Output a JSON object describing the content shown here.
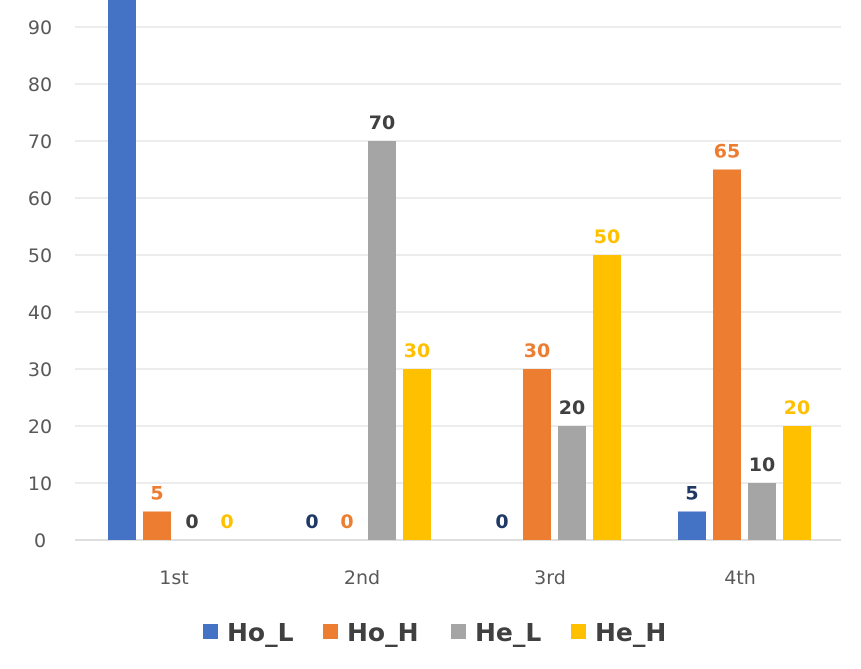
{
  "chart_data": {
    "type": "bar",
    "title": "",
    "xlabel": "",
    "ylabel": "",
    "categories": [
      "1st",
      "2nd",
      "3rd",
      "4th"
    ],
    "ylim": [
      0,
      95
    ],
    "yticks": [
      "0",
      "10",
      "20",
      "30",
      "40",
      "50",
      "60",
      "70",
      "80",
      "90"
    ],
    "grid": true,
    "legend_position": "bottom",
    "series": [
      {
        "name": "Ho_L",
        "color": "#4472C4",
        "label_color": "#1F3864",
        "values": [
          100,
          0,
          0,
          5
        ],
        "labels": [
          "",
          "0",
          "0",
          "5"
        ]
      },
      {
        "name": "Ho_H",
        "color": "#ED7D31",
        "label_color": "#ED7D31",
        "values": [
          5,
          0,
          30,
          65
        ],
        "labels": [
          "5",
          "0",
          "30",
          "65"
        ]
      },
      {
        "name": "He_L",
        "color": "#A5A5A5",
        "label_color": "#404040",
        "values": [
          0,
          70,
          20,
          10
        ],
        "labels": [
          "0",
          "70",
          "20",
          "10"
        ]
      },
      {
        "name": "He_H",
        "color": "#FFC000",
        "label_color": "#FFC000",
        "values": [
          0,
          30,
          50,
          20
        ],
        "labels": [
          "0",
          "30",
          "50",
          "20"
        ]
      }
    ]
  }
}
